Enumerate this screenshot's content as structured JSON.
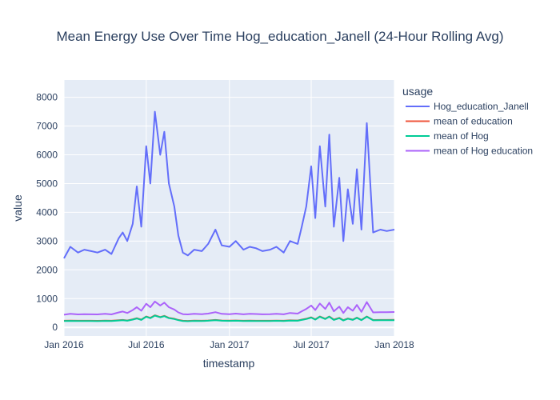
{
  "chart_data": {
    "type": "line",
    "title": "Mean Energy Use Over Time Hog_education_Janell (24-Hour Rolling Avg)",
    "xlabel": "timestamp",
    "ylabel": "value",
    "xlim": [
      "2016-01-01",
      "2018-01-01"
    ],
    "ylim": [
      -300,
      8600
    ],
    "x_ticks": [
      {
        "date": "2016-01-01",
        "label": "Jan 2016"
      },
      {
        "date": "2016-07-01",
        "label": "Jul 2016"
      },
      {
        "date": "2017-01-01",
        "label": "Jan 2017"
      },
      {
        "date": "2017-07-01",
        "label": "Jul 2017"
      },
      {
        "date": "2018-01-01",
        "label": "Jan 2018"
      }
    ],
    "y_ticks": [
      0,
      1000,
      2000,
      3000,
      4000,
      5000,
      6000,
      7000,
      8000
    ],
    "y_tick_labels": [
      "0",
      "1000",
      "2000",
      "3000",
      "4000",
      "5000",
      "6000",
      "7000",
      "8000"
    ],
    "legend": {
      "title": "usage",
      "placement": "right"
    },
    "grid": true,
    "background": "#e5ecf6",
    "x": [
      "2016-01-01",
      "2016-01-15",
      "2016-02-01",
      "2016-02-15",
      "2016-03-01",
      "2016-03-15",
      "2016-04-01",
      "2016-04-15",
      "2016-05-01",
      "2016-05-10",
      "2016-05-20",
      "2016-06-01",
      "2016-06-10",
      "2016-06-20",
      "2016-07-01",
      "2016-07-10",
      "2016-07-20",
      "2016-08-01",
      "2016-08-10",
      "2016-08-20",
      "2016-09-01",
      "2016-09-10",
      "2016-09-20",
      "2016-10-01",
      "2016-10-15",
      "2016-11-01",
      "2016-11-15",
      "2016-12-01",
      "2016-12-15",
      "2017-01-01",
      "2017-01-15",
      "2017-02-01",
      "2017-02-15",
      "2017-03-01",
      "2017-03-15",
      "2017-04-01",
      "2017-04-15",
      "2017-05-01",
      "2017-05-15",
      "2017-06-01",
      "2017-06-10",
      "2017-06-20",
      "2017-07-01",
      "2017-07-10",
      "2017-07-20",
      "2017-08-01",
      "2017-08-10",
      "2017-08-20",
      "2017-09-01",
      "2017-09-10",
      "2017-09-20",
      "2017-10-01",
      "2017-10-10",
      "2017-10-20",
      "2017-11-01",
      "2017-11-15",
      "2017-12-01",
      "2017-12-15",
      "2018-01-01"
    ],
    "series": [
      {
        "name": "Hog_education_Janell",
        "color": "#636efa",
        "values": [
          2400,
          2800,
          2600,
          2700,
          2650,
          2600,
          2700,
          2550,
          3100,
          3300,
          3000,
          3600,
          4900,
          3500,
          6300,
          5000,
          7500,
          6000,
          6800,
          5000,
          4200,
          3200,
          2600,
          2500,
          2700,
          2650,
          2900,
          3400,
          2850,
          2800,
          3000,
          2700,
          2800,
          2750,
          2650,
          2700,
          2800,
          2600,
          3000,
          2900,
          3500,
          4200,
          5600,
          3800,
          6300,
          4200,
          6700,
          3500,
          5200,
          3000,
          4800,
          3600,
          5500,
          3400,
          7100,
          3300,
          3400,
          3350,
          3400
        ]
      },
      {
        "name": "mean of education",
        "color": "#ef553b",
        "values": [
          230,
          235,
          230,
          232,
          230,
          228,
          235,
          230,
          250,
          260,
          240,
          280,
          320,
          270,
          380,
          330,
          420,
          360,
          400,
          330,
          300,
          260,
          230,
          225,
          235,
          230,
          240,
          260,
          240,
          235,
          240,
          230,
          235,
          232,
          230,
          232,
          238,
          230,
          245,
          240,
          270,
          300,
          350,
          280,
          380,
          300,
          380,
          270,
          330,
          250,
          310,
          270,
          340,
          260,
          380,
          255,
          260,
          258,
          262
        ]
      },
      {
        "name": "mean of Hog",
        "color": "#00cc96",
        "values": [
          220,
          225,
          220,
          222,
          220,
          218,
          225,
          220,
          240,
          250,
          230,
          270,
          310,
          260,
          370,
          320,
          410,
          350,
          390,
          320,
          290,
          250,
          220,
          215,
          225,
          220,
          230,
          250,
          230,
          225,
          230,
          220,
          225,
          222,
          220,
          222,
          228,
          220,
          235,
          230,
          260,
          290,
          340,
          270,
          370,
          290,
          370,
          260,
          320,
          240,
          300,
          260,
          330,
          250,
          370,
          245,
          250,
          248,
          252
        ]
      },
      {
        "name": "mean of Hog education",
        "color": "#ab63fa",
        "values": [
          440,
          470,
          450,
          460,
          455,
          450,
          470,
          450,
          520,
          550,
          500,
          600,
          700,
          580,
          820,
          700,
          900,
          760,
          860,
          700,
          620,
          520,
          460,
          450,
          470,
          460,
          480,
          530,
          470,
          460,
          480,
          455,
          470,
          465,
          455,
          460,
          470,
          455,
          500,
          480,
          560,
          640,
          760,
          600,
          830,
          640,
          860,
          560,
          720,
          500,
          700,
          580,
          780,
          540,
          880,
          520,
          530,
          525,
          535
        ]
      }
    ]
  }
}
